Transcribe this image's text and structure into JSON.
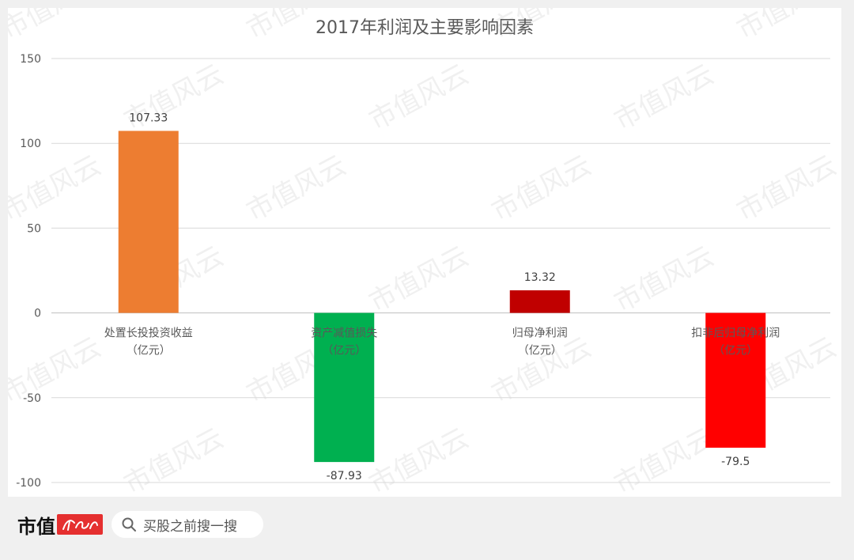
{
  "chart_data": {
    "type": "bar",
    "title": "2017年利润及主要影响因素",
    "categories": [
      [
        "处置长投投资收益",
        "（亿元）"
      ],
      [
        "资产减值损失",
        "（亿元）"
      ],
      [
        "归母净利润",
        "（亿元）"
      ],
      [
        "扣非后归母净利润",
        "（亿元）"
      ]
    ],
    "values": [
      107.33,
      -87.93,
      13.32,
      -79.5
    ],
    "data_labels": [
      "107.33",
      "-87.93",
      "13.32",
      "-79.5"
    ],
    "colors": [
      "#ed7d31",
      "#00b050",
      "#c00000",
      "#ff0000"
    ],
    "ylim": [
      -100,
      150
    ],
    "yticks": [
      150,
      100,
      50,
      0,
      -50,
      -100
    ],
    "xlabel": "",
    "ylabel": "",
    "grid": true,
    "legend": "none"
  },
  "watermark": "市值风云",
  "footer": {
    "brand": "市值",
    "brand_mark_icon": "fengyun-logo",
    "search_icon": "search-icon",
    "search_text": "买股之前搜一搜"
  }
}
